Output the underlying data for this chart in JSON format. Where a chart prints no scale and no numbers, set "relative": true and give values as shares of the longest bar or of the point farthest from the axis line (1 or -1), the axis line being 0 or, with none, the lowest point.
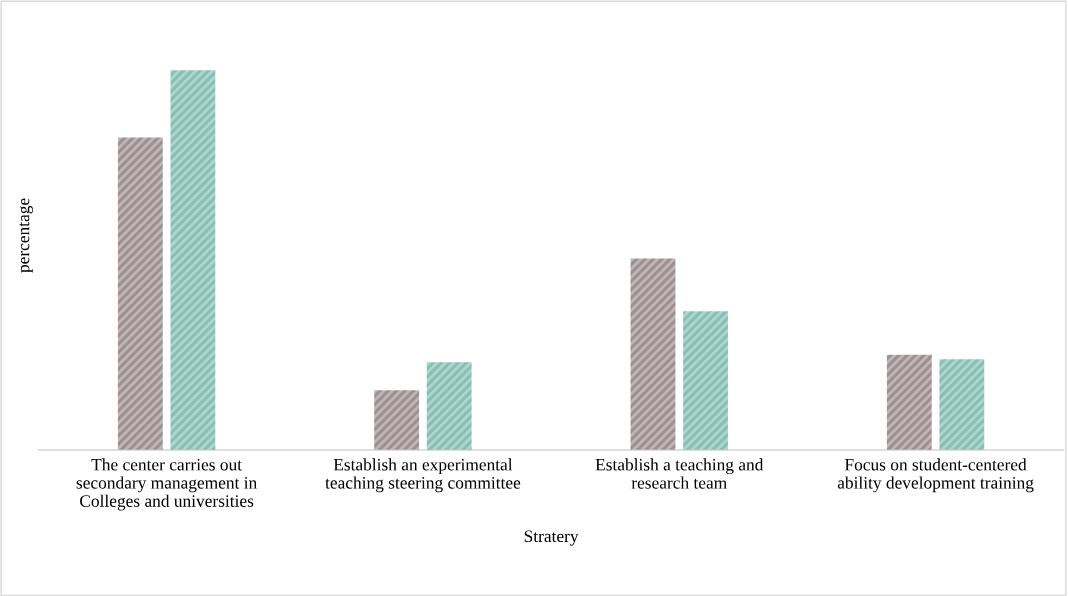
{
  "chart_data": {
    "type": "bar",
    "relative": true,
    "xlabel": "Stratery",
    "ylabel": "percentage",
    "categories": [
      "The center carries out\nsecondary management in\nColleges and universities",
      "Establish an experimental\nteaching steering committee",
      "Establish a teaching and\nresearch team",
      "Focus on student-centered\nability development training"
    ],
    "series": [
      {
        "color": "#9d8f92",
        "values": [
          0.823,
          0.157,
          0.504,
          0.251
        ]
      },
      {
        "color": "#86bfb3",
        "values": [
          1,
          0.231,
          0.365,
          0.239
        ]
      }
    ],
    "grid": false,
    "legend": false
  }
}
